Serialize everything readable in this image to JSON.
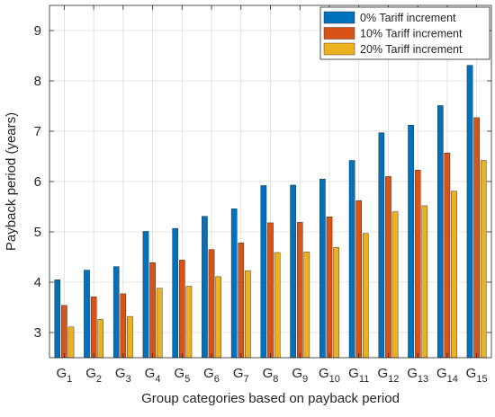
{
  "chart_data": {
    "type": "bar",
    "title": "",
    "xlabel": "Group categories based on payback period",
    "ylabel": "Payback period (years)",
    "ylim": [
      2.5,
      9.5
    ],
    "yticks": [
      3,
      4,
      5,
      6,
      7,
      8,
      9
    ],
    "grid": true,
    "legend_position": "top-right",
    "categories": [
      {
        "base": "G",
        "sub": "1"
      },
      {
        "base": "G",
        "sub": "2"
      },
      {
        "base": "G",
        "sub": "3"
      },
      {
        "base": "G",
        "sub": "4"
      },
      {
        "base": "G",
        "sub": "5"
      },
      {
        "base": "G",
        "sub": "6"
      },
      {
        "base": "G",
        "sub": "7"
      },
      {
        "base": "G",
        "sub": "8"
      },
      {
        "base": "G",
        "sub": "9"
      },
      {
        "base": "G",
        "sub": "10"
      },
      {
        "base": "G",
        "sub": "11"
      },
      {
        "base": "G",
        "sub": "12"
      },
      {
        "base": "G",
        "sub": "13"
      },
      {
        "base": "G",
        "sub": "14"
      },
      {
        "base": "G",
        "sub": "15"
      }
    ],
    "series": [
      {
        "name": "0% Tariff increment",
        "color": "#0072BD",
        "values": [
          4.05,
          4.24,
          4.31,
          5.01,
          5.07,
          5.31,
          5.46,
          5.92,
          5.93,
          6.05,
          6.42,
          6.97,
          7.12,
          7.51,
          8.31
        ]
      },
      {
        "name": "10% Tariff increment",
        "color": "#D95319",
        "values": [
          3.54,
          3.71,
          3.77,
          4.39,
          4.44,
          4.65,
          4.78,
          5.18,
          5.19,
          5.3,
          5.62,
          6.1,
          6.23,
          6.57,
          7.27
        ]
      },
      {
        "name": "20% Tariff increment",
        "color": "#EDB120",
        "values": [
          3.11,
          3.26,
          3.32,
          3.88,
          3.92,
          4.11,
          4.23,
          4.59,
          4.6,
          4.69,
          4.97,
          5.4,
          5.52,
          5.81,
          6.42
        ]
      }
    ]
  }
}
